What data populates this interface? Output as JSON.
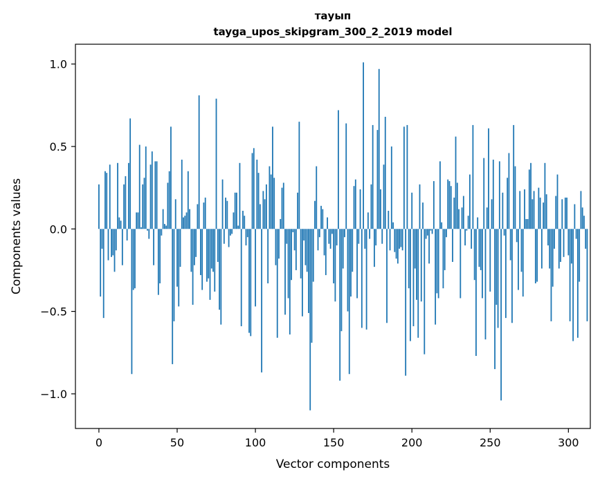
{
  "chart_data": {
    "type": "bar",
    "title_lines": [
      "тауып",
      "tayga_upos_skipgram_300_2_2019 model"
    ],
    "xlabel": "Vector components",
    "ylabel": "Components values",
    "xlim": [
      -15,
      314
    ],
    "ylim": [
      -1.21,
      1.12
    ],
    "xticks": [
      0,
      50,
      100,
      150,
      200,
      250,
      300
    ],
    "yticks": [
      -1.0,
      -0.5,
      0.0,
      0.5,
      1.0
    ],
    "ytick_labels": [
      "−1.0",
      "−0.5",
      "0.0",
      "0.5",
      "1.0"
    ],
    "bar_color": "#1f77b4",
    "x_start": 0,
    "values": [
      0.27,
      -0.41,
      -0.12,
      -0.54,
      0.35,
      0.34,
      -0.19,
      0.39,
      -0.17,
      -0.16,
      -0.26,
      -0.13,
      0.4,
      0.07,
      0.05,
      -0.22,
      0.27,
      0.32,
      -0.07,
      0.4,
      0.67,
      -0.88,
      -0.37,
      -0.36,
      0.1,
      0.1,
      0.51,
      0.01,
      0.27,
      0.31,
      0.5,
      -0.01,
      -0.06,
      0.39,
      0.47,
      -0.22,
      0.41,
      0.41,
      -0.4,
      -0.33,
      -0.04,
      0.12,
      0.03,
      0.02,
      0.28,
      0.35,
      0.62,
      -0.82,
      -0.56,
      0.18,
      -0.35,
      -0.47,
      -0.23,
      0.42,
      0.07,
      0.08,
      0.1,
      0.35,
      0.12,
      -0.26,
      -0.46,
      -0.22,
      -0.17,
      0.15,
      0.81,
      -0.28,
      -0.37,
      0.16,
      0.19,
      -0.32,
      -0.3,
      -0.43,
      -0.24,
      -0.26,
      -0.38,
      0.79,
      -0.2,
      -0.49,
      -0.58,
      0.3,
      -0.09,
      0.19,
      0.17,
      -0.11,
      -0.04,
      -0.03,
      0.1,
      0.22,
      0.22,
      0.02,
      0.4,
      -0.59,
      0.11,
      0.08,
      -0.1,
      -0.05,
      -0.63,
      -0.65,
      0.46,
      0.49,
      -0.47,
      0.42,
      0.34,
      0.15,
      -0.87,
      0.23,
      0.18,
      0.27,
      -0.33,
      0.38,
      0.33,
      0.62,
      0.31,
      -0.22,
      -0.66,
      -0.18,
      0.06,
      0.25,
      0.28,
      -0.52,
      -0.09,
      -0.42,
      -0.64,
      -0.31,
      -0.02,
      -0.13,
      -0.25,
      0.22,
      0.65,
      -0.3,
      -0.53,
      -0.07,
      -0.22,
      -0.26,
      -0.51,
      -1.1,
      -0.69,
      -0.32,
      0.17,
      0.38,
      -0.13,
      -0.05,
      0.14,
      0.12,
      -0.16,
      -0.28,
      0.07,
      -0.09,
      -0.12,
      -0.03,
      -0.33,
      -0.44,
      -0.1,
      0.72,
      -0.92,
      -0.62,
      -0.24,
      -0.05,
      0.64,
      -0.5,
      -0.88,
      -0.41,
      -0.26,
      0.26,
      0.3,
      -0.42,
      -0.09,
      0.24,
      -0.6,
      1.01,
      -0.12,
      -0.61,
      0.1,
      -0.06,
      0.27,
      0.63,
      -0.23,
      -0.1,
      0.6,
      0.97,
      0.24,
      -0.09,
      0.39,
      0.68,
      -0.57,
      0.11,
      -0.13,
      0.5,
      0.04,
      -0.14,
      -0.18,
      -0.21,
      -0.12,
      -0.11,
      -0.13,
      0.62,
      -0.89,
      0.63,
      -0.36,
      -0.68,
      0.22,
      -0.59,
      -0.24,
      -0.43,
      -0.66,
      0.27,
      -0.44,
      0.16,
      -0.76,
      -0.06,
      -0.04,
      -0.21,
      -0.01,
      -0.03,
      0.29,
      -0.58,
      -0.39,
      -0.42,
      0.41,
      0.04,
      -0.36,
      -0.25,
      -0.05,
      0.3,
      0.29,
      0.26,
      -0.2,
      0.19,
      0.56,
      0.28,
      0.12,
      -0.42,
      0.13,
      0.2,
      -0.1,
      -0.01,
      0.08,
      0.33,
      -0.12,
      0.63,
      -0.31,
      -0.77,
      0.07,
      -0.23,
      -0.25,
      -0.42,
      0.43,
      -0.67,
      0.13,
      0.61,
      -0.38,
      0.18,
      0.42,
      -0.85,
      -0.46,
      -0.6,
      0.41,
      -1.04,
      0.22,
      -0.04,
      -0.54,
      0.31,
      0.46,
      -0.19,
      -0.57,
      0.63,
      0.38,
      -0.08,
      -0.37,
      0.23,
      -0.26,
      -0.41,
      0.24,
      0.06,
      0.06,
      0.36,
      0.4,
      0.18,
      0.23,
      -0.33,
      -0.32,
      0.25,
      0.19,
      -0.24,
      0.16,
      0.4,
      0.21,
      -0.1,
      -0.24,
      -0.56,
      -0.35,
      -0.12,
      0.2,
      0.33,
      -0.24,
      -0.2,
      0.18,
      -0.17,
      0.19,
      0.19,
      -0.16,
      -0.56,
      -0.21,
      -0.68,
      0.15,
      -0.06,
      -0.66,
      -0.32,
      0.23,
      0.13,
      0.08,
      -0.12,
      -0.56
    ]
  }
}
